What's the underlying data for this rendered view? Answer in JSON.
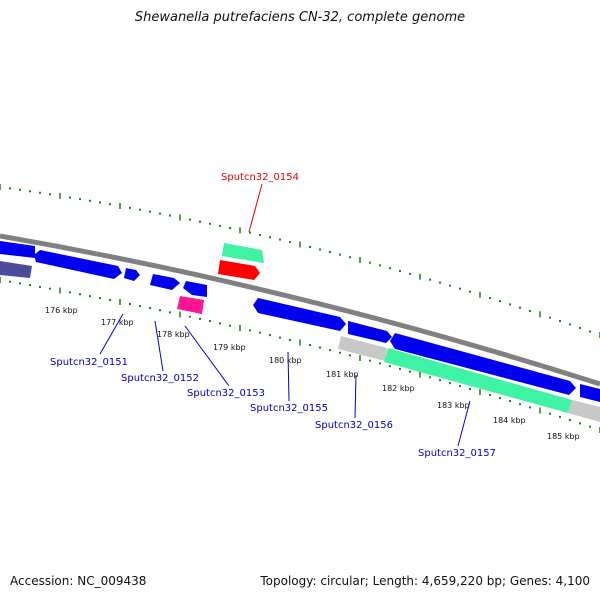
{
  "title": "Shewanella putrefaciens CN-32, complete genome",
  "footer": {
    "accession": "Accession: NC_009438",
    "summary": "Topology: circular; Length: 4,659,220 bp; Genes: 4,100"
  },
  "colors": {
    "forward_gene": "#0000ee",
    "reverse_gene": "#2424c8",
    "highlight_rna": "#ff0000",
    "cds_green": "#3ef3a4",
    "pseudo_gray": "#c8c8c8",
    "pink": "#ff1493",
    "purple": "#4b4b9a",
    "ticks": "#118811",
    "label_blue": "#0000c8",
    "label_red": "#e00000"
  },
  "kbp_labels": [
    "176 kbp",
    "177 kbp",
    "178 kbp",
    "179 kbp",
    "180 kbp",
    "181 kbp",
    "182 kbp",
    "183 kbp",
    "184 kbp",
    "185 kbp"
  ],
  "gene_labels": [
    {
      "text": "Sputcn32_0154",
      "color": "red"
    },
    {
      "text": "Sputcn32_0151",
      "color": "blue"
    },
    {
      "text": "Sputcn32_0152",
      "color": "blue"
    },
    {
      "text": "Sputcn32_0153",
      "color": "blue"
    },
    {
      "text": "Sputcn32_0155",
      "color": "blue"
    },
    {
      "text": "Sputcn32_0156",
      "color": "blue"
    },
    {
      "text": "Sputcn32_0157",
      "color": "blue"
    }
  ]
}
